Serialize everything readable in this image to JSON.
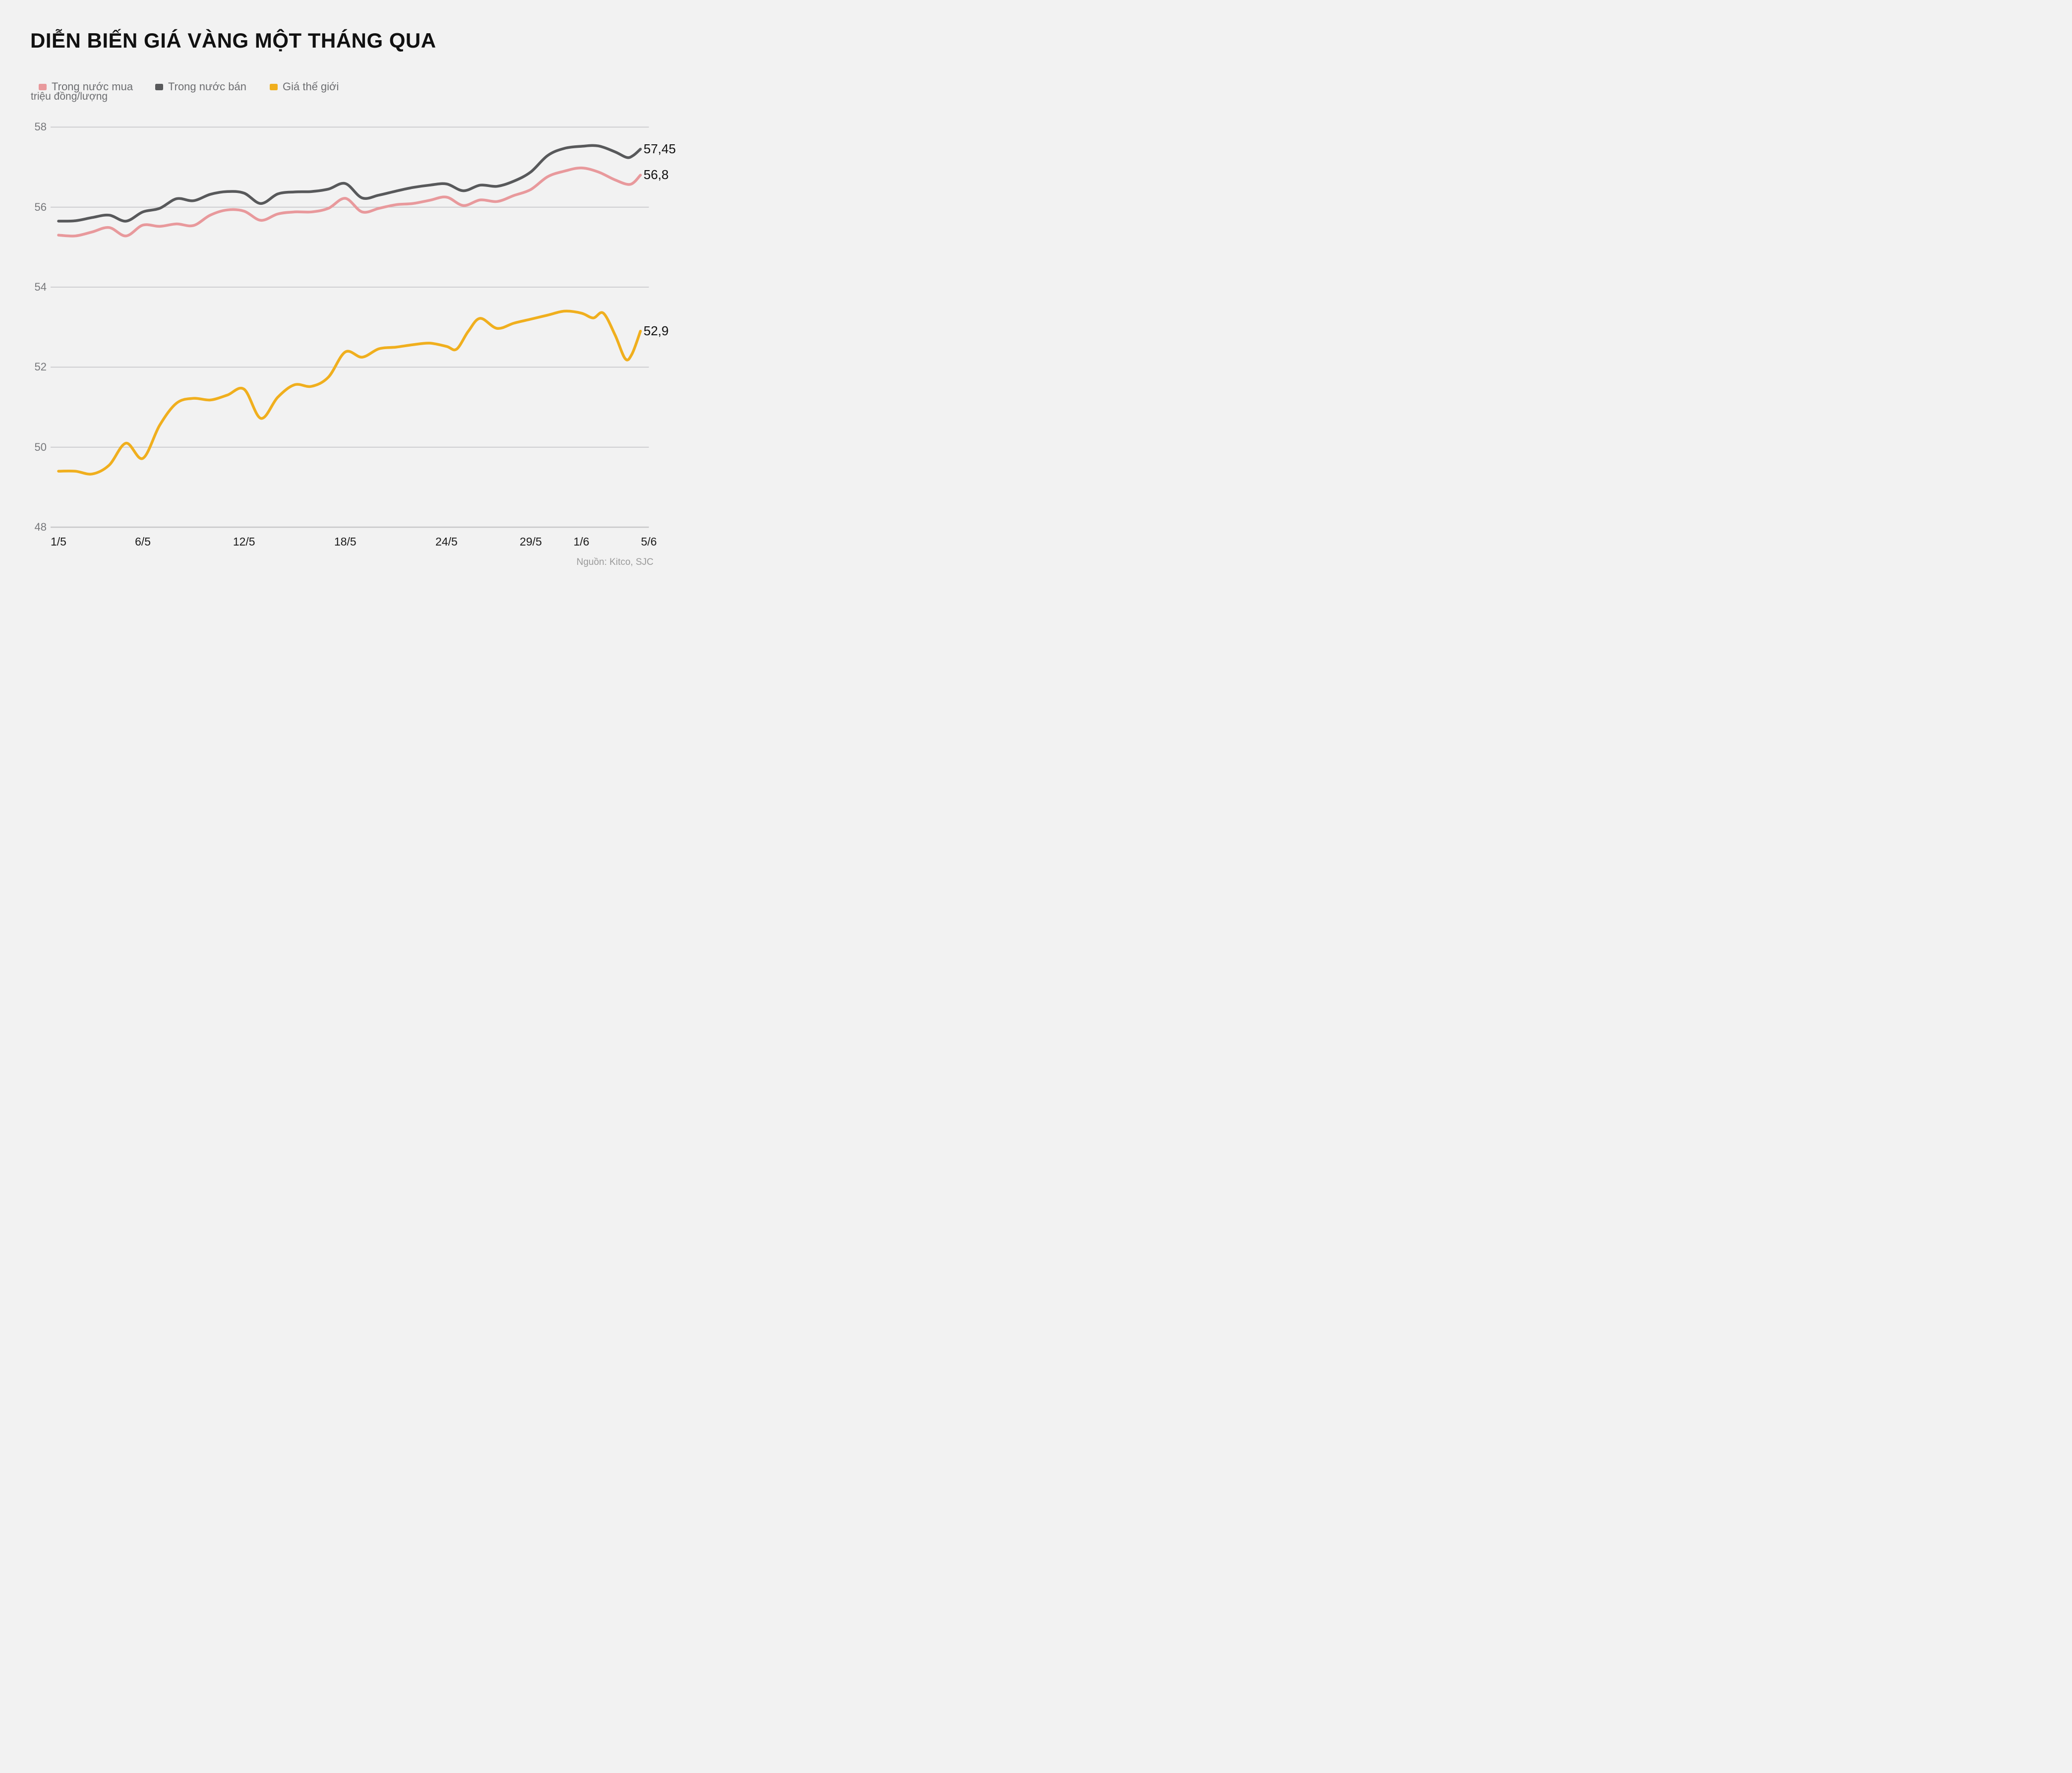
{
  "header": {
    "title": "DIỄN BIẾN GIÁ VÀNG MỘT THÁNG QUA"
  },
  "legend": {
    "items": [
      {
        "label": "Trong nước mua",
        "color": "#E8999C"
      },
      {
        "label": "Trong nước bán",
        "color": "#58595B"
      },
      {
        "label": "Giá thế giới",
        "color": "#F0AF1E"
      }
    ]
  },
  "axis": {
    "unit_label": "triệu đồng/lượng"
  },
  "source": {
    "text": "Nguồn: Kitco, SJC"
  },
  "colors": {
    "background": "#F2F2F2",
    "grid": "#C7C7C9",
    "title_text": "#111111",
    "axis_text": "#77787B",
    "x_axis_text": "#1A1A1A",
    "legend_text": "#6D6E71",
    "end_label_text": "#111111",
    "source_text": "#9A9A9A"
  },
  "chart_data": {
    "type": "line",
    "title": "DIỄN BIẾN GIÁ VÀNG MỘT THÁNG QUA",
    "ylabel": "triệu đồng/lượng",
    "ylim": [
      48,
      58
    ],
    "y_ticks": [
      58,
      56,
      54,
      52,
      50,
      48
    ],
    "x_tick_labels": [
      "1/5",
      "6/5",
      "12/5",
      "18/5",
      "24/5",
      "29/5",
      "1/6",
      "5/6"
    ],
    "x_tick_days": [
      0,
      5,
      11,
      17,
      23,
      28,
      31,
      35
    ],
    "x_axis_days_range": [
      0,
      35
    ],
    "grid": "horizontal",
    "legend_position": "top-left",
    "series": [
      {
        "name": "Trong nước mua",
        "color": "#E8999C",
        "end_label": "56,8",
        "end_value": 56.8,
        "points": [
          [
            0,
            55.3
          ],
          [
            1,
            55.28
          ],
          [
            2,
            55.38
          ],
          [
            3,
            55.49
          ],
          [
            4,
            55.28
          ],
          [
            5,
            55.55
          ],
          [
            6,
            55.52
          ],
          [
            7,
            55.58
          ],
          [
            8,
            55.54
          ],
          [
            9,
            55.8
          ],
          [
            10,
            55.93
          ],
          [
            11,
            55.9
          ],
          [
            12,
            55.67
          ],
          [
            13,
            55.83
          ],
          [
            14,
            55.88
          ],
          [
            15,
            55.88
          ],
          [
            16,
            55.97
          ],
          [
            17,
            56.22
          ],
          [
            18,
            55.88
          ],
          [
            19,
            55.97
          ],
          [
            20,
            56.06
          ],
          [
            21,
            56.09
          ],
          [
            22,
            56.17
          ],
          [
            23,
            56.25
          ],
          [
            24,
            56.04
          ],
          [
            25,
            56.18
          ],
          [
            26,
            56.14
          ],
          [
            27,
            56.29
          ],
          [
            28,
            56.44
          ],
          [
            29,
            56.76
          ],
          [
            30,
            56.9
          ],
          [
            31,
            56.98
          ],
          [
            32,
            56.88
          ],
          [
            33,
            56.68
          ],
          [
            33.9,
            56.57
          ],
          [
            34.5,
            56.8
          ]
        ]
      },
      {
        "name": "Trong nước bán",
        "color": "#58595B",
        "end_label": "57,45",
        "end_value": 57.45,
        "points": [
          [
            0,
            55.65
          ],
          [
            1,
            55.66
          ],
          [
            2,
            55.74
          ],
          [
            3,
            55.8
          ],
          [
            4,
            55.65
          ],
          [
            5,
            55.88
          ],
          [
            6,
            55.97
          ],
          [
            7,
            56.21
          ],
          [
            8,
            56.16
          ],
          [
            9,
            56.32
          ],
          [
            10,
            56.39
          ],
          [
            11,
            56.35
          ],
          [
            12,
            56.09
          ],
          [
            13,
            56.33
          ],
          [
            14,
            56.38
          ],
          [
            15,
            56.39
          ],
          [
            16,
            56.45
          ],
          [
            17,
            56.59
          ],
          [
            18,
            56.23
          ],
          [
            19,
            56.3
          ],
          [
            20,
            56.4
          ],
          [
            21,
            56.49
          ],
          [
            22,
            56.55
          ],
          [
            23,
            56.58
          ],
          [
            24,
            56.41
          ],
          [
            25,
            56.55
          ],
          [
            26,
            56.52
          ],
          [
            27,
            56.65
          ],
          [
            28,
            56.88
          ],
          [
            29,
            57.29
          ],
          [
            30,
            57.47
          ],
          [
            31,
            57.52
          ],
          [
            32,
            57.53
          ],
          [
            33,
            57.38
          ],
          [
            33.7,
            57.24
          ],
          [
            34.1,
            57.3
          ],
          [
            34.5,
            57.45
          ]
        ]
      },
      {
        "name": "Giá thế giới",
        "color": "#F0AF1E",
        "end_label": "52,9",
        "end_value": 52.9,
        "points": [
          [
            0,
            49.4
          ],
          [
            1,
            49.4
          ],
          [
            2,
            49.33
          ],
          [
            3,
            49.55
          ],
          [
            4,
            50.1
          ],
          [
            5,
            49.72
          ],
          [
            6,
            50.55
          ],
          [
            7,
            51.1
          ],
          [
            8,
            51.22
          ],
          [
            9,
            51.18
          ],
          [
            10,
            51.3
          ],
          [
            11,
            51.45
          ],
          [
            12,
            50.72
          ],
          [
            13,
            51.25
          ],
          [
            14,
            51.56
          ],
          [
            15,
            51.52
          ],
          [
            16,
            51.75
          ],
          [
            17,
            52.38
          ],
          [
            18,
            52.25
          ],
          [
            19,
            52.46
          ],
          [
            20,
            52.5
          ],
          [
            21,
            52.56
          ],
          [
            22,
            52.6
          ],
          [
            23,
            52.52
          ],
          [
            23.6,
            52.45
          ],
          [
            24.3,
            52.9
          ],
          [
            25,
            53.22
          ],
          [
            26,
            52.97
          ],
          [
            27,
            53.1
          ],
          [
            28,
            53.2
          ],
          [
            29,
            53.3
          ],
          [
            30,
            53.4
          ],
          [
            31,
            53.35
          ],
          [
            31.7,
            53.23
          ],
          [
            32.3,
            53.35
          ],
          [
            33,
            52.8
          ],
          [
            33.6,
            52.21
          ],
          [
            34,
            52.33
          ],
          [
            34.5,
            52.9
          ]
        ]
      }
    ]
  }
}
